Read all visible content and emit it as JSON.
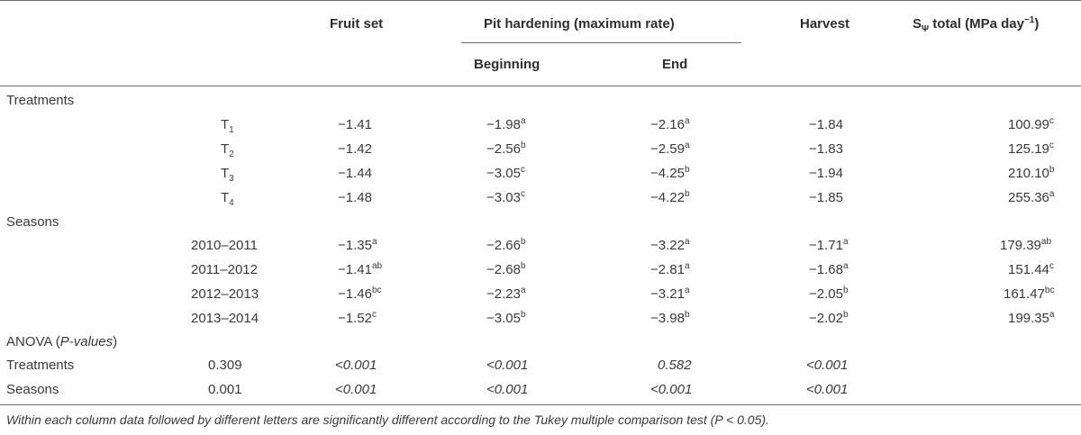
{
  "headers": {
    "fruit_set": "Fruit set",
    "pit_hardening": "Pit hardening (maximum rate)",
    "beginning": "Beginning",
    "end": "End",
    "harvest": "Harvest",
    "s_total_prefix": "S",
    "s_total_sub": "Ψ",
    "s_total_suffix": " total (MPa day",
    "s_total_exp": "−1",
    "s_total_close": ")"
  },
  "sections": {
    "treatments": "Treatments",
    "seasons": "Seasons",
    "anova_prefix": "ANOVA (",
    "anova_italic": "P-values",
    "anova_suffix": ")"
  },
  "treatment_rows": [
    {
      "label": "T",
      "sub": "1",
      "fruit": "−1.41",
      "fruit_sup": "",
      "beg": "−1.98",
      "beg_sup": "a",
      "end": "−2.16",
      "end_sup": "a",
      "harv": "−1.84",
      "harv_sup": "",
      "stot": "100.99",
      "stot_sup": "c"
    },
    {
      "label": "T",
      "sub": "2",
      "fruit": "−1.42",
      "fruit_sup": "",
      "beg": "−2.56",
      "beg_sup": "b",
      "end": "−2.59",
      "end_sup": "a",
      "harv": "−1.83",
      "harv_sup": "",
      "stot": "125.19",
      "stot_sup": "c"
    },
    {
      "label": "T",
      "sub": "3",
      "fruit": "−1.44",
      "fruit_sup": "",
      "beg": "−3.05",
      "beg_sup": "c",
      "end": "−4.25",
      "end_sup": "b",
      "harv": "−1.94",
      "harv_sup": "",
      "stot": "210.10",
      "stot_sup": "b"
    },
    {
      "label": "T",
      "sub": "4",
      "fruit": "−1.48",
      "fruit_sup": "",
      "beg": "−3.03",
      "beg_sup": "c",
      "end": "−4.22",
      "end_sup": "b",
      "harv": "−1.85",
      "harv_sup": "",
      "stot": "255.36",
      "stot_sup": "a"
    }
  ],
  "season_rows": [
    {
      "label": "2010–2011",
      "fruit": "−1.35",
      "fruit_sup": "a",
      "beg": "−2.66",
      "beg_sup": "b",
      "end": "−3.22",
      "end_sup": "a",
      "harv": "−1.71",
      "harv_sup": "a",
      "stot": "179.39",
      "stot_sup": "ab"
    },
    {
      "label": "2011–2012",
      "fruit": "−1.41",
      "fruit_sup": "ab",
      "beg": "−2.68",
      "beg_sup": "b",
      "end": "−2.81",
      "end_sup": "a",
      "harv": "−1.68",
      "harv_sup": "a",
      "stot": "151.44",
      "stot_sup": "c"
    },
    {
      "label": "2012–2013",
      "fruit": "−1.46",
      "fruit_sup": "bc",
      "beg": "−2.23",
      "beg_sup": "a",
      "end": "−3.21",
      "end_sup": "a",
      "harv": "−2.05",
      "harv_sup": "b",
      "stot": "161.47",
      "stot_sup": "bc"
    },
    {
      "label": "2013–2014",
      "fruit": "−1.52",
      "fruit_sup": "c",
      "beg": "−3.05",
      "beg_sup": "b",
      "end": "−3.98",
      "end_sup": "b",
      "harv": "−2.02",
      "harv_sup": "b",
      "stot": "199.35",
      "stot_sup": "a"
    }
  ],
  "anova_rows": [
    {
      "label": "Treatments",
      "fruit": "0.309",
      "beg": "<0.001",
      "end_col": "<0.001",
      "end": "0.582",
      "harv": "<0.001"
    },
    {
      "label": "Seasons",
      "fruit": "0.001",
      "beg": "<0.001",
      "end_col": "<0.001",
      "end": "<0.001",
      "harv": "<0.001"
    }
  ],
  "footnote": "Within each column data followed by different letters are significantly different according to the Tukey multiple comparison test (P < 0.05)."
}
